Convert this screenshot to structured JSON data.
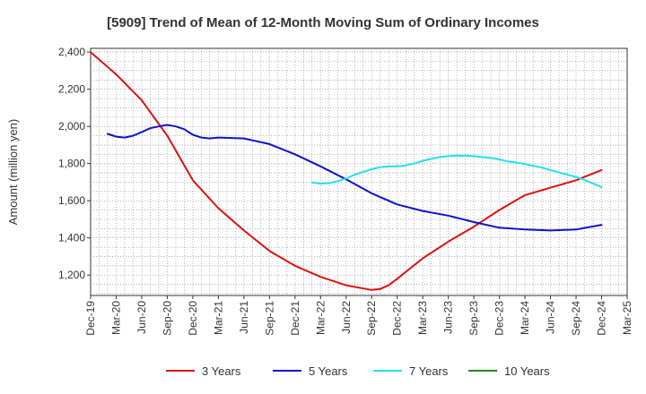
{
  "chart_data": {
    "type": "line",
    "title": "[5909]  Trend of Mean of 12-Month Moving Sum of Ordinary Incomes",
    "xlabel": "",
    "ylabel": "Amount (million yen)",
    "ylim": [
      1090,
      2420
    ],
    "yticks": [
      1200,
      1400,
      1600,
      1800,
      2000,
      2200,
      2400
    ],
    "ytick_labels": [
      "1,200",
      "1,400",
      "1,600",
      "1,800",
      "2,000",
      "2,200",
      "2,400"
    ],
    "x_categories": [
      "Dec-19",
      "Mar-20",
      "Jun-20",
      "Sep-20",
      "Dec-20",
      "Mar-21",
      "Jun-21",
      "Sep-21",
      "Dec-21",
      "Mar-22",
      "Jun-22",
      "Sep-22",
      "Dec-22",
      "Mar-23",
      "Jun-23",
      "Sep-23",
      "Dec-23",
      "Mar-24",
      "Jun-24",
      "Sep-24",
      "Dec-24",
      "Mar-25"
    ],
    "x_unit": "months since Dec-19",
    "grid": true,
    "legend_position": "bottom",
    "series": [
      {
        "name": "3 Years",
        "color": "#dd1111",
        "x": [
          0,
          3,
          6,
          9,
          12,
          15,
          18,
          21,
          24,
          27,
          30,
          33,
          34,
          35,
          36,
          39,
          42,
          45,
          48,
          51,
          54,
          57,
          60
        ],
        "values": [
          2400,
          2280,
          2140,
          1950,
          1710,
          1560,
          1440,
          1330,
          1250,
          1190,
          1145,
          1120,
          1125,
          1145,
          1180,
          1290,
          1380,
          1460,
          1550,
          1630,
          1670,
          1710,
          1765
        ]
      },
      {
        "name": "5 Years",
        "color": "#1111cc",
        "x": [
          2,
          3,
          4,
          5,
          6,
          7,
          8,
          9,
          10,
          11,
          12,
          13,
          14,
          15,
          18,
          21,
          24,
          27,
          30,
          33,
          36,
          39,
          42,
          45,
          48,
          51,
          54,
          57,
          60
        ],
        "values": [
          1960,
          1945,
          1940,
          1950,
          1970,
          1990,
          2000,
          2008,
          2000,
          1985,
          1955,
          1940,
          1935,
          1940,
          1935,
          1905,
          1850,
          1785,
          1715,
          1640,
          1580,
          1545,
          1520,
          1485,
          1455,
          1445,
          1440,
          1445,
          1470
        ]
      },
      {
        "name": "7 Years",
        "color": "#22e0ee",
        "x": [
          26,
          27,
          28,
          29,
          30,
          31,
          32,
          33,
          34,
          35,
          36,
          37,
          38,
          39,
          40,
          41,
          42,
          43,
          44,
          45,
          46,
          47,
          48,
          49,
          50,
          51,
          52,
          53,
          54,
          55,
          56,
          57,
          58,
          59,
          60
        ],
        "values": [
          1698,
          1692,
          1695,
          1705,
          1720,
          1740,
          1755,
          1770,
          1780,
          1785,
          1785,
          1790,
          1800,
          1815,
          1825,
          1835,
          1840,
          1842,
          1842,
          1840,
          1835,
          1830,
          1822,
          1812,
          1805,
          1798,
          1788,
          1778,
          1765,
          1752,
          1740,
          1728,
          1712,
          1693,
          1673
        ]
      },
      {
        "name": "10 Years",
        "color": "#228822",
        "x": [],
        "values": []
      }
    ]
  }
}
